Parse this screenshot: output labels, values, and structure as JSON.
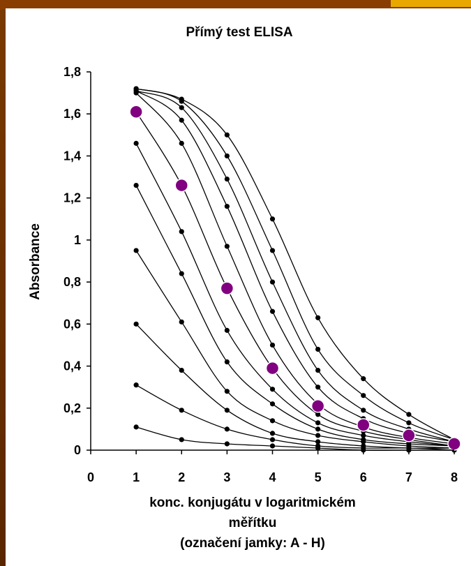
{
  "chart_data": {
    "type": "line",
    "title": "Přímý  test ELISA",
    "ylabel": "Absorbance",
    "xlabel_lines": [
      "konc. konjugátu v logaritmickém",
      "měřítku",
      "(označení jamky: A - H)"
    ],
    "xlim": [
      0,
      8
    ],
    "ylim": [
      0,
      1.8
    ],
    "x_ticks": [
      "0",
      "1",
      "2",
      "3",
      "4",
      "5",
      "6",
      "7",
      "8"
    ],
    "y_ticks": [
      "0",
      "0,2",
      "0,4",
      "0,6",
      "0,8",
      "1",
      "1,2",
      "1,4",
      "1,6",
      "1,8"
    ],
    "x": [
      1,
      2,
      3,
      4,
      5,
      6,
      7,
      8
    ],
    "series": [
      {
        "values": [
          1.72,
          1.67,
          1.5,
          1.1,
          0.63,
          0.34,
          0.17,
          0.05
        ]
      },
      {
        "values": [
          1.72,
          1.66,
          1.4,
          0.95,
          0.48,
          0.26,
          0.13,
          0.05
        ]
      },
      {
        "values": [
          1.71,
          1.63,
          1.29,
          0.8,
          0.38,
          0.19,
          0.1,
          0.04
        ]
      },
      {
        "values": [
          1.71,
          1.57,
          1.16,
          0.66,
          0.3,
          0.15,
          0.08,
          0.04
        ]
      },
      {
        "values": [
          1.7,
          1.46,
          0.97,
          0.5,
          0.22,
          0.11,
          0.06,
          0.03
        ]
      },
      {
        "values": [
          1.61,
          1.26,
          0.77,
          0.39,
          0.17,
          0.09,
          0.05,
          0.02
        ]
      },
      {
        "values": [
          1.46,
          1.04,
          0.57,
          0.29,
          0.13,
          0.07,
          0.04,
          0.02
        ]
      },
      {
        "values": [
          1.26,
          0.84,
          0.42,
          0.22,
          0.1,
          0.05,
          0.03,
          0.02
        ]
      },
      {
        "values": [
          0.95,
          0.61,
          0.28,
          0.14,
          0.07,
          0.04,
          0.02,
          0.01
        ]
      },
      {
        "values": [
          0.6,
          0.38,
          0.19,
          0.08,
          0.04,
          0.02,
          0.01,
          0.01
        ]
      },
      {
        "values": [
          0.31,
          0.19,
          0.1,
          0.05,
          0.02,
          0.01,
          0.01,
          0.0
        ]
      },
      {
        "values": [
          0.11,
          0.05,
          0.03,
          0.02,
          0.01,
          0.0,
          0.0,
          0.0
        ]
      }
    ],
    "highlighted": {
      "color": "#800080",
      "x": [
        1,
        2,
        3,
        4,
        5,
        6,
        7,
        8
      ],
      "values": [
        1.61,
        1.26,
        0.77,
        0.39,
        0.21,
        0.12,
        0.07,
        0.03
      ]
    },
    "grid": false,
    "legend": "none"
  }
}
